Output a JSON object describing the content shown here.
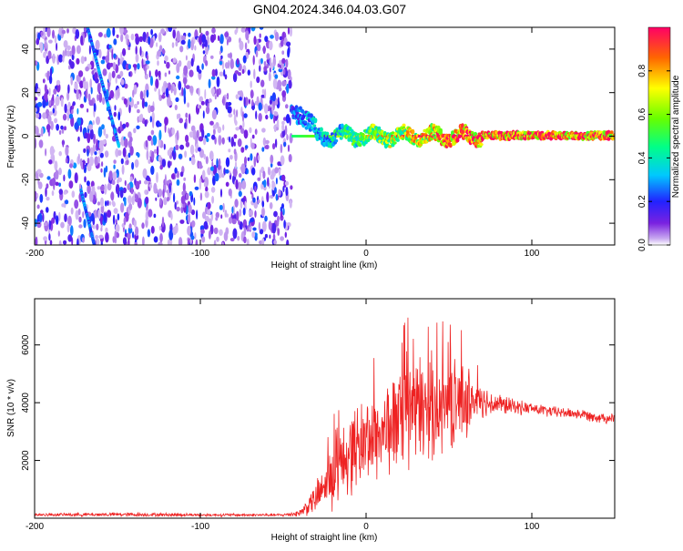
{
  "title": "GN04.2024.346.04.03.G07",
  "chart_data": [
    {
      "type": "heatmap",
      "xlabel": "Height of straight line (km)",
      "ylabel": "Frequency (Hz)",
      "xlim": [
        -200,
        150
      ],
      "ylim": [
        -50,
        50
      ],
      "x_ticks": [
        -200,
        -100,
        0,
        100
      ],
      "y_ticks": [
        -40,
        -20,
        0,
        20,
        40
      ],
      "colorbar": {
        "label": "Normalized spectral amplitude",
        "range": [
          0.0,
          1.0
        ],
        "ticks": [
          "0.0",
          "0.2",
          "0.4",
          "0.6",
          "0.8"
        ],
        "tick_values": [
          0.0,
          0.2,
          0.4,
          0.6,
          0.8
        ]
      },
      "features": {
        "noise_region_x": [
          -200,
          -45
        ],
        "carrier_line_frequency_hz": 0,
        "carrier_onset_x": -45,
        "carrier_onset_frequency_hz": 12,
        "carrier_settle_x": -30,
        "streaks": [
          {
            "x_start": -168,
            "y_start": 50,
            "x_end": -149,
            "y_end": -5
          },
          {
            "x_start": -172,
            "y_start": -25,
            "x_end": -164,
            "y_end": -50
          }
        ]
      }
    },
    {
      "type": "line",
      "xlabel": "Height of straight line (km)",
      "ylabel": "SNR (10 * v/v)",
      "xlim": [
        -200,
        150
      ],
      "ylim": [
        0,
        7600
      ],
      "x_ticks": [
        -200,
        -100,
        0,
        100
      ],
      "y_ticks": [
        2000,
        4000,
        6000
      ],
      "color": "#ee2222",
      "envelope": {
        "x": [
          -200,
          -150,
          -100,
          -50,
          -40,
          -30,
          -20,
          -10,
          0,
          10,
          20,
          30,
          40,
          50,
          60,
          70,
          80,
          90,
          100,
          110,
          120,
          130,
          140,
          150
        ],
        "mean": [
          120,
          130,
          115,
          110,
          180,
          700,
          1500,
          2300,
          2700,
          3000,
          3400,
          3700,
          3900,
          3900,
          4100,
          4050,
          3950,
          3850,
          3800,
          3700,
          3650,
          3600,
          3500,
          3450
        ],
        "spread": [
          60,
          80,
          60,
          60,
          150,
          650,
          1300,
          1700,
          1800,
          1900,
          2100,
          2300,
          2100,
          1900,
          1500,
          700,
          450,
          300,
          250,
          230,
          220,
          220,
          220,
          220
        ],
        "max_peak": 7500
      }
    }
  ]
}
